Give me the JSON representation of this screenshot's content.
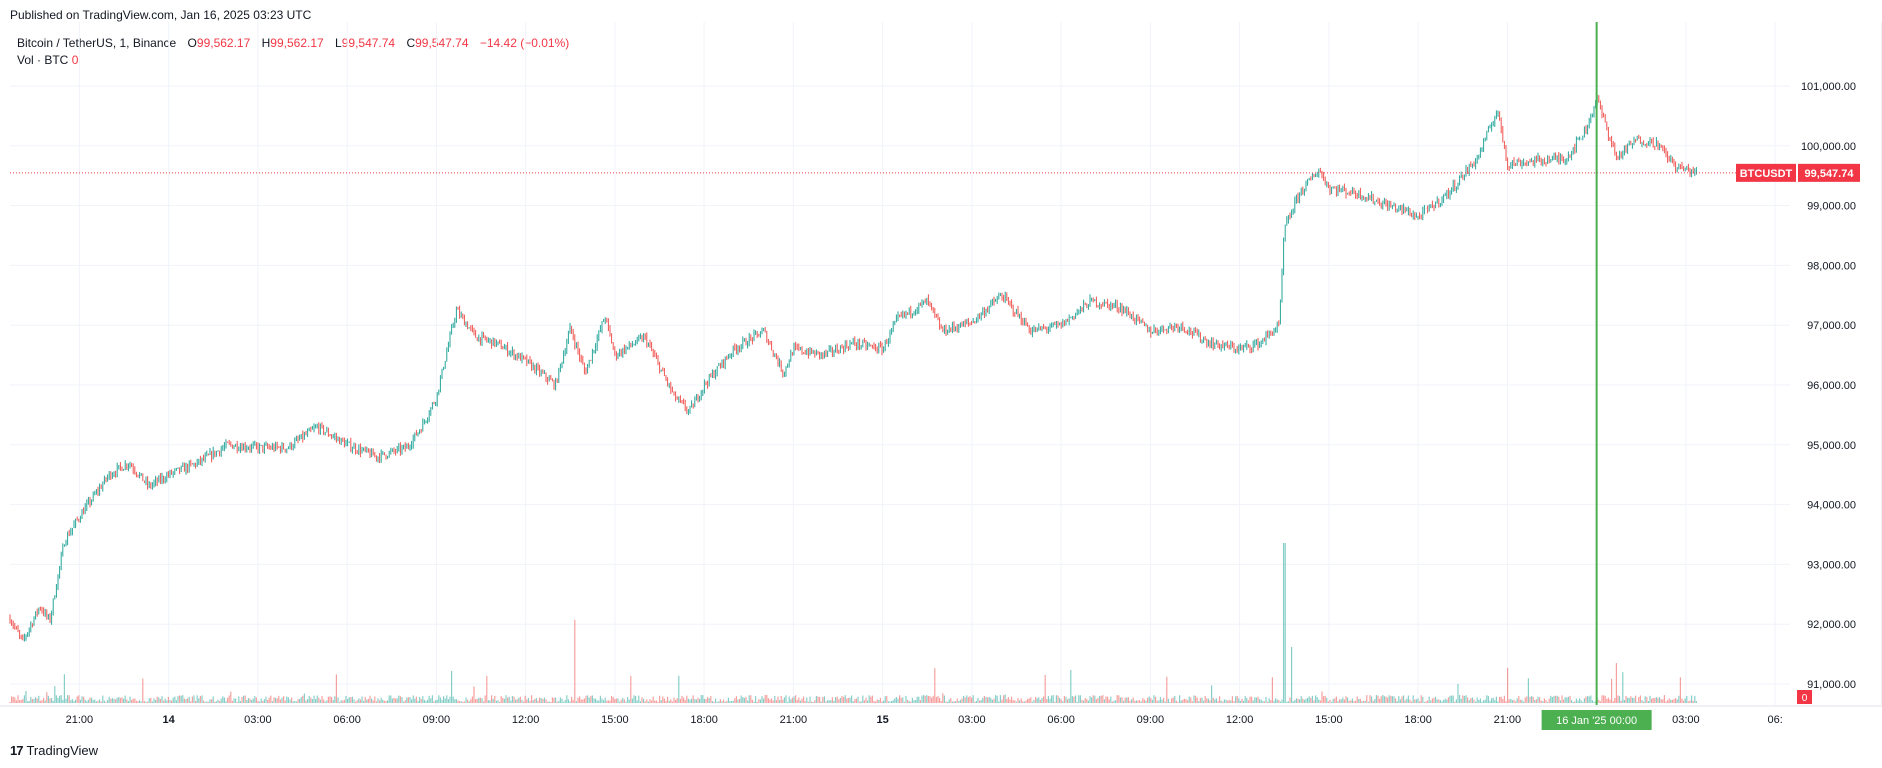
{
  "header": {
    "published": "Published on TradingView.com, Jan 16, 2025 03:23 UTC"
  },
  "legend": {
    "symbol": "Bitcoin / TetherUS, 1, Binance",
    "o_label": "O",
    "o_value": "99,562.17",
    "h_label": "H",
    "h_value": "99,562.17",
    "l_label": "L",
    "l_value": "99,547.74",
    "c_label": "C",
    "c_value": "99,547.74",
    "change": "−14.42 (−0.01%)",
    "vol_label": "Vol · BTC",
    "vol_value": "0"
  },
  "footer": {
    "logo_mark": "17",
    "logo_text": "TradingView"
  },
  "colors": {
    "up": "#26a69a",
    "down": "#ef5350",
    "grid": "#f0f3fa",
    "cursor": "#4caf50",
    "price_line": "#f23645",
    "text": "#131722"
  },
  "chart_data": {
    "type": "candlestick",
    "symbol": "BTCUSDT",
    "last_price": 99547.74,
    "last_price_label": "99,547.74",
    "volume_last_label": "0",
    "y_ticks": [
      91000,
      92000,
      93000,
      94000,
      95000,
      96000,
      97000,
      98000,
      99000,
      100000,
      101000
    ],
    "y_tick_labels": [
      "91,000.00",
      "92,000.00",
      "93,000.00",
      "94,000.00",
      "95,000.00",
      "96,000.00",
      "97,000.00",
      "98,000.00",
      "99,000.00",
      "100,000.00",
      "101,000.00"
    ],
    "x_ticks": [
      {
        "label": "21:00",
        "t": "2025-01-13T21:00"
      },
      {
        "label": "14",
        "t": "2025-01-14T00:00"
      },
      {
        "label": "03:00",
        "t": "2025-01-14T03:00"
      },
      {
        "label": "06:00",
        "t": "2025-01-14T06:00"
      },
      {
        "label": "09:00",
        "t": "2025-01-14T09:00"
      },
      {
        "label": "12:00",
        "t": "2025-01-14T12:00"
      },
      {
        "label": "15:00",
        "t": "2025-01-14T15:00"
      },
      {
        "label": "18:00",
        "t": "2025-01-14T18:00"
      },
      {
        "label": "21:00",
        "t": "2025-01-14T21:00"
      },
      {
        "label": "15",
        "t": "2025-01-15T00:00"
      },
      {
        "label": "03:00",
        "t": "2025-01-15T03:00"
      },
      {
        "label": "06:00",
        "t": "2025-01-15T06:00"
      },
      {
        "label": "09:00",
        "t": "2025-01-15T09:00"
      },
      {
        "label": "12:00",
        "t": "2025-01-15T12:00"
      },
      {
        "label": "15:00",
        "t": "2025-01-15T15:00"
      },
      {
        "label": "18:00",
        "t": "2025-01-15T18:00"
      },
      {
        "label": "21:00",
        "t": "2025-01-15T21:00"
      },
      {
        "label": "03:00",
        "t": "2025-01-16T03:00"
      },
      {
        "label": "06:",
        "t": "2025-01-16T06:00"
      }
    ],
    "crosshair": {
      "label": "16 Jan '25   00:00",
      "t": "2025-01-16T00:00"
    },
    "ylim": [
      90750,
      101650
    ],
    "xlim": [
      "2025-01-13T18:40",
      "2025-01-16T06:30"
    ],
    "price_path": [
      {
        "t": "2025-01-13T18:40",
        "y": 92100
      },
      {
        "t": "2025-01-13T19:05",
        "y": 91700
      },
      {
        "t": "2025-01-13T19:40",
        "y": 92300
      },
      {
        "t": "2025-01-13T20:00",
        "y": 92050
      },
      {
        "t": "2025-01-13T20:30",
        "y": 93400
      },
      {
        "t": "2025-01-13T21:00",
        "y": 93800
      },
      {
        "t": "2025-01-13T22:00",
        "y": 94500
      },
      {
        "t": "2025-01-13T22:40",
        "y": 94700
      },
      {
        "t": "2025-01-13T23:20",
        "y": 94300
      },
      {
        "t": "2025-01-14T00:00",
        "y": 94500
      },
      {
        "t": "2025-01-14T01:00",
        "y": 94700
      },
      {
        "t": "2025-01-14T02:00",
        "y": 95000
      },
      {
        "t": "2025-01-14T03:00",
        "y": 94950
      },
      {
        "t": "2025-01-14T04:00",
        "y": 94950
      },
      {
        "t": "2025-01-14T05:00",
        "y": 95300
      },
      {
        "t": "2025-01-14T06:00",
        "y": 95000
      },
      {
        "t": "2025-01-14T07:00",
        "y": 94800
      },
      {
        "t": "2025-01-14T08:00",
        "y": 94950
      },
      {
        "t": "2025-01-14T08:30",
        "y": 95300
      },
      {
        "t": "2025-01-14T09:00",
        "y": 95800
      },
      {
        "t": "2025-01-14T09:40",
        "y": 97250
      },
      {
        "t": "2025-01-14T10:20",
        "y": 96800
      },
      {
        "t": "2025-01-14T11:00",
        "y": 96700
      },
      {
        "t": "2025-01-14T12:00",
        "y": 96400
      },
      {
        "t": "2025-01-14T13:00",
        "y": 96000
      },
      {
        "t": "2025-01-14T13:30",
        "y": 96950
      },
      {
        "t": "2025-01-14T14:00",
        "y": 96200
      },
      {
        "t": "2025-01-14T14:40",
        "y": 97150
      },
      {
        "t": "2025-01-14T15:00",
        "y": 96500
      },
      {
        "t": "2025-01-14T16:00",
        "y": 96800
      },
      {
        "t": "2025-01-14T17:00",
        "y": 95800
      },
      {
        "t": "2025-01-14T17:30",
        "y": 95550
      },
      {
        "t": "2025-01-14T18:00",
        "y": 96000
      },
      {
        "t": "2025-01-14T19:00",
        "y": 96600
      },
      {
        "t": "2025-01-14T20:00",
        "y": 96900
      },
      {
        "t": "2025-01-14T20:40",
        "y": 96200
      },
      {
        "t": "2025-01-14T21:00",
        "y": 96600
      },
      {
        "t": "2025-01-14T22:00",
        "y": 96500
      },
      {
        "t": "2025-01-14T23:00",
        "y": 96700
      },
      {
        "t": "2025-01-15T00:00",
        "y": 96600
      },
      {
        "t": "2025-01-15T00:30",
        "y": 97100
      },
      {
        "t": "2025-01-15T01:30",
        "y": 97400
      },
      {
        "t": "2025-01-15T02:00",
        "y": 96900
      },
      {
        "t": "2025-01-15T03:00",
        "y": 97050
      },
      {
        "t": "2025-01-15T04:00",
        "y": 97500
      },
      {
        "t": "2025-01-15T05:00",
        "y": 96900
      },
      {
        "t": "2025-01-15T06:00",
        "y": 97000
      },
      {
        "t": "2025-01-15T07:00",
        "y": 97400
      },
      {
        "t": "2025-01-15T08:00",
        "y": 97300
      },
      {
        "t": "2025-01-15T09:00",
        "y": 96900
      },
      {
        "t": "2025-01-15T10:00",
        "y": 97000
      },
      {
        "t": "2025-01-15T11:00",
        "y": 96700
      },
      {
        "t": "2025-01-15T12:00",
        "y": 96600
      },
      {
        "t": "2025-01-15T12:40",
        "y": 96700
      },
      {
        "t": "2025-01-15T13:20",
        "y": 97000
      },
      {
        "t": "2025-01-15T13:30",
        "y": 98600
      },
      {
        "t": "2025-01-15T14:00",
        "y": 99200
      },
      {
        "t": "2025-01-15T14:40",
        "y": 99600
      },
      {
        "t": "2025-01-15T15:00",
        "y": 99300
      },
      {
        "t": "2025-01-15T16:00",
        "y": 99200
      },
      {
        "t": "2025-01-15T17:00",
        "y": 99000
      },
      {
        "t": "2025-01-15T17:40",
        "y": 98900
      },
      {
        "t": "2025-01-15T18:00",
        "y": 98800
      },
      {
        "t": "2025-01-15T19:00",
        "y": 99200
      },
      {
        "t": "2025-01-15T20:00",
        "y": 99800
      },
      {
        "t": "2025-01-15T20:40",
        "y": 100600
      },
      {
        "t": "2025-01-15T21:00",
        "y": 99700
      },
      {
        "t": "2025-01-15T22:00",
        "y": 99750
      },
      {
        "t": "2025-01-15T23:00",
        "y": 99800
      },
      {
        "t": "2025-01-15T23:40",
        "y": 100300
      },
      {
        "t": "2025-01-16T00:00",
        "y": 100800
      },
      {
        "t": "2025-01-16T00:40",
        "y": 99800
      },
      {
        "t": "2025-01-16T01:20",
        "y": 100100
      },
      {
        "t": "2025-01-16T02:00",
        "y": 100050
      },
      {
        "t": "2025-01-16T02:40",
        "y": 99650
      },
      {
        "t": "2025-01-16T03:23",
        "y": 99547.74
      }
    ],
    "volume_spikes": [
      {
        "t": "2025-01-13T20:30",
        "v": 0.18
      },
      {
        "t": "2025-01-14T09:30",
        "v": 0.2
      },
      {
        "t": "2025-01-14T13:40",
        "v": 0.52
      },
      {
        "t": "2025-01-14T17:10",
        "v": 0.17
      },
      {
        "t": "2025-01-15T13:30",
        "v": 1.0
      },
      {
        "t": "2025-01-15T13:45",
        "v": 0.35
      },
      {
        "t": "2025-01-15T21:00",
        "v": 0.22
      },
      {
        "t": "2025-01-16T00:40",
        "v": 0.25
      },
      {
        "t": "2025-01-16T02:50",
        "v": 0.16
      }
    ]
  }
}
